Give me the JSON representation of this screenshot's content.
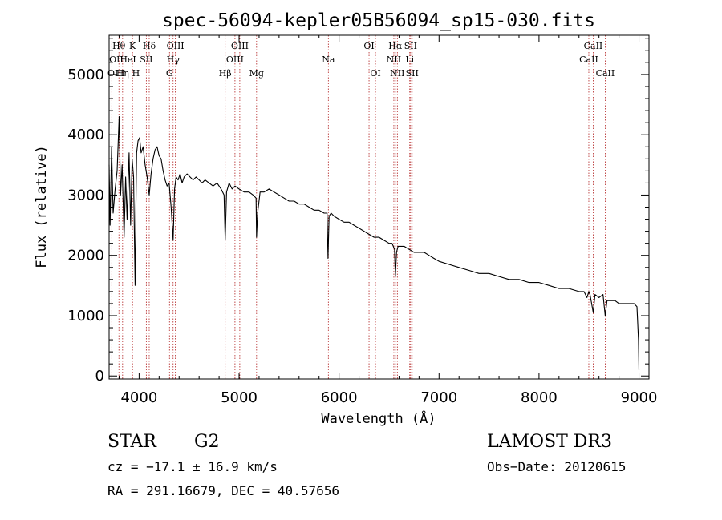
{
  "chart_data": {
    "type": "line",
    "title": "spec-56094-kepler05B56094_sp15-030.fits",
    "xlabel": "Wavelength (Å)",
    "ylabel": "Flux (relative)",
    "xlim": [
      3700,
      9100
    ],
    "ylim": [
      -50,
      5650
    ],
    "x_ticks": [
      4000,
      5000,
      6000,
      7000,
      8000,
      9000
    ],
    "y_ticks": [
      0,
      1000,
      2000,
      3000,
      4000,
      5000
    ],
    "grid": false,
    "series": [
      {
        "name": "spectrum",
        "x": [
          3700,
          3710,
          3725,
          3740,
          3760,
          3780,
          3800,
          3815,
          3830,
          3850,
          3865,
          3880,
          3900,
          3915,
          3930,
          3945,
          3960,
          3968,
          3975,
          3990,
          4005,
          4020,
          4040,
          4060,
          4080,
          4101,
          4120,
          4140,
          4160,
          4180,
          4200,
          4220,
          4240,
          4260,
          4280,
          4300,
          4320,
          4340,
          4355,
          4370,
          4390,
          4410,
          4430,
          4450,
          4480,
          4510,
          4540,
          4570,
          4600,
          4630,
          4660,
          4700,
          4740,
          4780,
          4820,
          4850,
          4861,
          4875,
          4900,
          4930,
          4960,
          5000,
          5050,
          5100,
          5140,
          5170,
          5175,
          5185,
          5210,
          5250,
          5300,
          5350,
          5400,
          5450,
          5500,
          5550,
          5600,
          5650,
          5700,
          5750,
          5800,
          5850,
          5880,
          5890,
          5900,
          5920,
          5950,
          6000,
          6050,
          6100,
          6150,
          6200,
          6250,
          6300,
          6350,
          6400,
          6450,
          6500,
          6530,
          6555,
          6563,
          6575,
          6590,
          6620,
          6650,
          6700,
          6750,
          6800,
          6850,
          6900,
          6950,
          7000,
          7100,
          7200,
          7300,
          7400,
          7500,
          7600,
          7700,
          7800,
          7900,
          8000,
          8100,
          8200,
          8300,
          8400,
          8450,
          8480,
          8498,
          8510,
          8542,
          8560,
          8600,
          8640,
          8662,
          8680,
          8720,
          8760,
          8800,
          8850,
          8900,
          8950,
          8980,
          8995,
          9000
        ],
        "values": [
          3500,
          2500,
          3800,
          2700,
          3100,
          3400,
          4300,
          3000,
          3500,
          2300,
          3300,
          2600,
          3700,
          2500,
          3600,
          3300,
          1500,
          2800,
          3700,
          3900,
          3950,
          3700,
          3800,
          3500,
          3300,
          3000,
          3350,
          3600,
          3750,
          3800,
          3650,
          3600,
          3400,
          3250,
          3150,
          3200,
          2800,
          2250,
          3100,
          3300,
          3250,
          3350,
          3200,
          3300,
          3350,
          3300,
          3250,
          3300,
          3250,
          3200,
          3250,
          3200,
          3150,
          3200,
          3100,
          3000,
          2250,
          3050,
          3200,
          3100,
          3150,
          3100,
          3050,
          3050,
          3000,
          2950,
          2300,
          2700,
          3050,
          3050,
          3100,
          3050,
          3000,
          2950,
          2900,
          2900,
          2850,
          2850,
          2800,
          2750,
          2750,
          2700,
          2700,
          1950,
          2650,
          2700,
          2650,
          2600,
          2550,
          2550,
          2500,
          2450,
          2400,
          2350,
          2300,
          2300,
          2250,
          2200,
          2200,
          2100,
          1650,
          2050,
          2150,
          2150,
          2150,
          2100,
          2050,
          2050,
          2050,
          2000,
          1950,
          1900,
          1850,
          1800,
          1750,
          1700,
          1700,
          1650,
          1600,
          1600,
          1550,
          1550,
          1500,
          1450,
          1450,
          1400,
          1400,
          1300,
          1400,
          1350,
          1050,
          1350,
          1300,
          1350,
          1000,
          1250,
          1250,
          1250,
          1200,
          1200,
          1200,
          1200,
          1150,
          600,
          100
        ]
      }
    ],
    "lines": [
      {
        "label": "Hθ",
        "x": 3798,
        "row": 1
      },
      {
        "label": "OII",
        "x": 3727,
        "row": 2
      },
      {
        "label": "OIII",
        "x": 3727,
        "row": 3
      },
      {
        "label": "K",
        "x": 3934,
        "row": 1
      },
      {
        "label": "HeI",
        "x": 3889,
        "row": 2
      },
      {
        "label": "Hη",
        "x": 3835,
        "row": 3
      },
      {
        "label": "SII",
        "x": 4072,
        "row": 2
      },
      {
        "label": "H",
        "x": 3968,
        "row": 3
      },
      {
        "label": "Hδ",
        "x": 4101,
        "row": 1
      },
      {
        "label": "OIII",
        "x": 4363,
        "row": 1
      },
      {
        "label": "Hγ",
        "x": 4340,
        "row": 2
      },
      {
        "label": "G",
        "x": 4304,
        "row": 3
      },
      {
        "label": "OIII",
        "x": 5007,
        "row": 1
      },
      {
        "label": "OIII",
        "x": 4959,
        "row": 2
      },
      {
        "label": "Hβ",
        "x": 4861,
        "row": 3
      },
      {
        "label": "Mg",
        "x": 5175,
        "row": 3
      },
      {
        "label": "Na",
        "x": 5893,
        "row": 2
      },
      {
        "label": "OI",
        "x": 6300,
        "row": 1
      },
      {
        "label": "OI",
        "x": 6364,
        "row": 3
      },
      {
        "label": "Hα",
        "x": 6563,
        "row": 1
      },
      {
        "label": "SII",
        "x": 6716,
        "row": 1
      },
      {
        "label": "NII",
        "x": 6548,
        "row": 2
      },
      {
        "label": "Li",
        "x": 6707,
        "row": 2
      },
      {
        "label": "NII",
        "x": 6583,
        "row": 3
      },
      {
        "label": "SII",
        "x": 6731,
        "row": 3
      },
      {
        "label": "CaII",
        "x": 8542,
        "row": 1
      },
      {
        "label": "CaII",
        "x": 8498,
        "row": 2
      },
      {
        "label": "CaII",
        "x": 8662,
        "row": 3
      }
    ]
  },
  "info": {
    "object_class": "STAR",
    "subclass": "G2",
    "survey": "LAMOST DR3",
    "redshift": "cz = −17.1 ± 16.9 km/s",
    "obs_date": "Obs−Date: 20120615",
    "coords": "RA = 291.16679, DEC =  40.57656"
  },
  "colors": {
    "spectrum": "#000000",
    "line_markers": "#b22222",
    "axes": "#000000"
  }
}
